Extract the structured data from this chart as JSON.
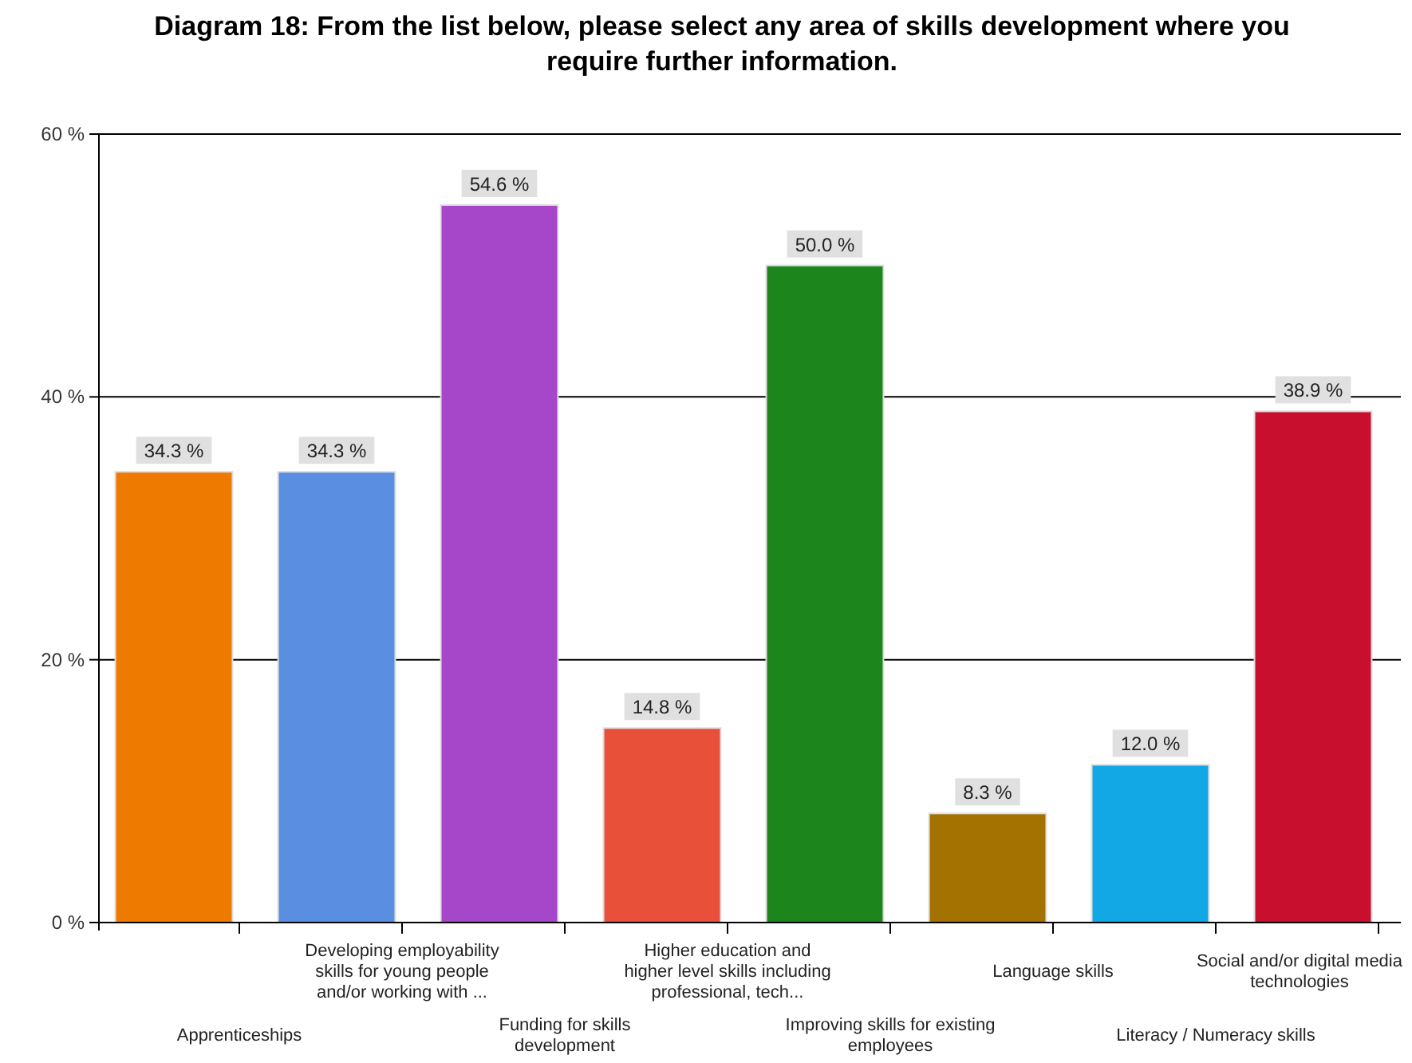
{
  "chart_data": {
    "type": "bar",
    "title": "Diagram 18: From the list below, please select any area of skills development where you require further information.",
    "categories": [
      "Apprenticeships",
      "Developing employability skills for young people and/or working with ...",
      "Funding for skills development",
      "Higher education and higher level skills including professional, tech...",
      "Improving skills for existing employees",
      "Language skills",
      "Literacy / Numeracy skills",
      "Social and/or digital media technologies"
    ],
    "values": [
      34.3,
      34.3,
      54.6,
      14.8,
      50.0,
      8.3,
      12.0,
      38.9
    ],
    "colors": [
      "#ee7a00",
      "#5a8ee0",
      "#a646c8",
      "#e8503a",
      "#1c861c",
      "#a47200",
      "#12a8e6",
      "#c8102e"
    ],
    "value_labels": [
      "34.3 %",
      "34.3 %",
      "54.6 %",
      "14.8 %",
      "50.0 %",
      "8.3 %",
      "12.0 %",
      "38.9 %"
    ],
    "ylim": [
      0,
      60
    ],
    "yticks": [
      {
        "value": 0,
        "label": "0 %"
      },
      {
        "value": 20,
        "label": "20 %"
      },
      {
        "value": 40,
        "label": "40 %"
      },
      {
        "value": 60,
        "label": "60 %"
      }
    ],
    "grid": "y"
  }
}
